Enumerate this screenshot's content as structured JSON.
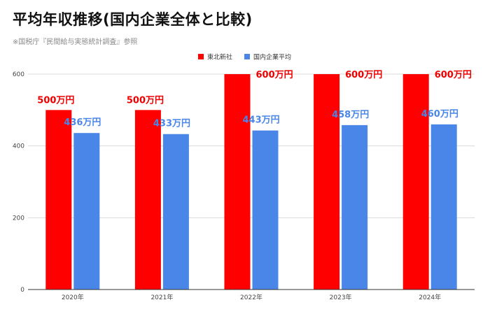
{
  "header": {
    "title": "平均年収推移(国内企業全体と比較)",
    "subtitle": "※国税庁『民間給与実態統計調査』参照"
  },
  "colors": {
    "series_1": "#ff0000",
    "series_2": "#4a86e8",
    "label_1": "#ee0000",
    "label_2": "#4a86e8",
    "grid": "#d9d9d9",
    "axis": "#333333"
  },
  "chart_data": {
    "type": "bar",
    "title": "平均年収推移(国内企業全体と比較)",
    "subtitle": "※国税庁『民間給与実態統計調査』参照",
    "categories": [
      "2020年",
      "2021年",
      "2022年",
      "2023年",
      "2024年"
    ],
    "series": [
      {
        "name": "東北新社",
        "values": [
          500,
          500,
          600,
          600,
          600
        ],
        "labels": [
          "500万円",
          "500万円",
          "600万円",
          "600万円",
          "600万円"
        ]
      },
      {
        "name": "国内企業平均",
        "values": [
          436,
          433,
          443,
          458,
          460
        ],
        "labels": [
          "436万円",
          "433万円",
          "443万円",
          "458万円",
          "460万円"
        ]
      }
    ],
    "yticks": [
      0,
      200,
      400,
      600
    ],
    "ylim": [
      0,
      600
    ],
    "grid": true,
    "legend_position": "top-center",
    "xlabel": "",
    "ylabel": ""
  }
}
